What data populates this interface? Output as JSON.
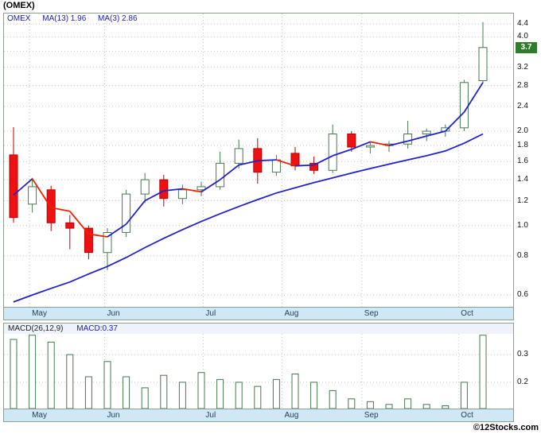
{
  "page": {
    "title": "(OMEX)",
    "copyright": "©12Stocks.com"
  },
  "colors": {
    "accent_blue": "#1a1ab8",
    "ma_up_blue": "#2222cc",
    "ma_down_red": "#ee2200",
    "candle_up_fill": "#ffffff",
    "candle_up_stroke": "#47784f",
    "candle_down_fill": "#ee1111",
    "candle_down_stroke": "#bb0000",
    "grid": "#c4c4c4",
    "panel_border": "#8f9f8f",
    "axis_band_bg": "#cfe8f5",
    "price_tag_bg": "#2d7d2d",
    "price_tag_text": "#ffffff",
    "macd_bar_fill": "#ffffff",
    "macd_bar_stroke": "#47784f"
  },
  "main_chart": {
    "legend": {
      "symbol": "OMEX",
      "ma13": "MA(13) 1.96",
      "ma3": "MA(3) 2.86"
    },
    "price_tag": "3.7"
  },
  "macd_chart": {
    "label": "MACD(26,12,9)",
    "value": "MACD:0.37"
  },
  "chart_data": [
    {
      "type": "candlestick",
      "symbol": "OMEX",
      "interval": "weekly",
      "y_scale": "log",
      "ylim": [
        0.55,
        4.75
      ],
      "y_ticks": [
        4.4,
        4.0,
        3.6,
        3.2,
        2.8,
        2.4,
        2.0,
        1.8,
        1.6,
        1.4,
        1.2,
        1.0,
        0.8,
        0.6
      ],
      "months": [
        "May",
        "Jun",
        "Jul",
        "Aug",
        "Sep",
        "Oct"
      ],
      "month_start_index": [
        0.85,
        4.85,
        10.1,
        14.3,
        18.55,
        23.7
      ],
      "last_price": 3.7,
      "candles": [
        {
          "o": 1.68,
          "h": 2.06,
          "l": 1.02,
          "c": 1.06
        },
        {
          "o": 1.17,
          "h": 1.42,
          "l": 1.1,
          "c": 1.33
        },
        {
          "o": 1.3,
          "h": 1.34,
          "l": 0.96,
          "c": 1.02
        },
        {
          "o": 1.02,
          "h": 1.08,
          "l": 0.84,
          "c": 0.98
        },
        {
          "o": 0.98,
          "h": 1.0,
          "l": 0.78,
          "c": 0.82
        },
        {
          "o": 0.82,
          "h": 0.98,
          "l": 0.72,
          "c": 0.95
        },
        {
          "o": 0.95,
          "h": 1.3,
          "l": 0.92,
          "c": 1.26
        },
        {
          "o": 1.26,
          "h": 1.47,
          "l": 1.18,
          "c": 1.4
        },
        {
          "o": 1.4,
          "h": 1.45,
          "l": 1.15,
          "c": 1.22
        },
        {
          "o": 1.22,
          "h": 1.35,
          "l": 1.17,
          "c": 1.3
        },
        {
          "o": 1.3,
          "h": 1.38,
          "l": 1.24,
          "c": 1.33
        },
        {
          "o": 1.33,
          "h": 1.72,
          "l": 1.3,
          "c": 1.58
        },
        {
          "o": 1.58,
          "h": 1.88,
          "l": 1.52,
          "c": 1.76
        },
        {
          "o": 1.76,
          "h": 1.9,
          "l": 1.36,
          "c": 1.48
        },
        {
          "o": 1.48,
          "h": 1.68,
          "l": 1.44,
          "c": 1.62
        },
        {
          "o": 1.7,
          "h": 1.78,
          "l": 1.5,
          "c": 1.55
        },
        {
          "o": 1.58,
          "h": 1.66,
          "l": 1.46,
          "c": 1.5
        },
        {
          "o": 1.5,
          "h": 2.1,
          "l": 1.47,
          "c": 1.96
        },
        {
          "o": 1.96,
          "h": 2.0,
          "l": 1.72,
          "c": 1.78
        },
        {
          "o": 1.78,
          "h": 1.85,
          "l": 1.7,
          "c": 1.8
        },
        {
          "o": 1.8,
          "h": 1.86,
          "l": 1.72,
          "c": 1.82
        },
        {
          "o": 1.82,
          "h": 2.16,
          "l": 1.76,
          "c": 1.96
        },
        {
          "o": 1.96,
          "h": 2.04,
          "l": 1.86,
          "c": 2.0
        },
        {
          "o": 2.0,
          "h": 2.1,
          "l": 1.92,
          "c": 2.05
        },
        {
          "o": 2.05,
          "h": 2.92,
          "l": 2.0,
          "c": 2.86
        },
        {
          "o": 2.9,
          "h": 4.46,
          "l": 2.84,
          "c": 3.7
        }
      ],
      "overlays": [
        {
          "name": "MA(3)",
          "current": 2.86,
          "style": "two-color-trend",
          "values": [
            1.25,
            1.41,
            1.14,
            1.11,
            0.94,
            0.92,
            1.01,
            1.2,
            1.29,
            1.31,
            1.28,
            1.4,
            1.56,
            1.61,
            1.62,
            1.55,
            1.56,
            1.67,
            1.75,
            1.85,
            1.8,
            1.86,
            1.93,
            2.0,
            2.3,
            2.86
          ]
        },
        {
          "name": "MA(13)",
          "current": 1.96,
          "style": "solid-blue",
          "values": [
            0.57,
            0.6,
            0.63,
            0.66,
            0.7,
            0.74,
            0.79,
            0.85,
            0.91,
            0.97,
            1.03,
            1.09,
            1.15,
            1.21,
            1.27,
            1.32,
            1.37,
            1.42,
            1.47,
            1.52,
            1.57,
            1.62,
            1.67,
            1.73,
            1.83,
            1.96
          ]
        }
      ]
    },
    {
      "type": "bar",
      "title": "MACD(26,12,9)",
      "current": 0.37,
      "ylim": [
        0.105,
        0.375
      ],
      "y_ticks": [
        0.3,
        0.2
      ],
      "values": [
        0.355,
        0.37,
        0.345,
        0.3,
        0.22,
        0.275,
        0.22,
        0.18,
        0.225,
        0.2,
        0.235,
        0.21,
        0.2,
        0.185,
        0.21,
        0.23,
        0.2,
        0.17,
        0.14,
        0.13,
        0.12,
        0.14,
        0.12,
        0.115,
        0.2,
        0.37
      ]
    }
  ]
}
